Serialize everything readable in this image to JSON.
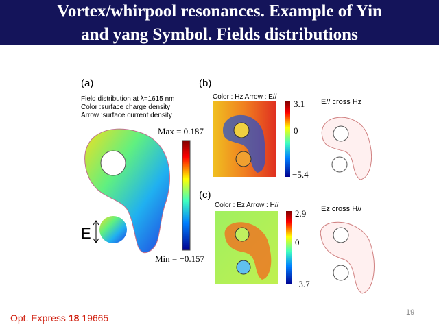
{
  "header": {
    "title_line1": "Vortex/whirpool resonances. Example of Yin",
    "title_line2": "and yang Symbol. Fields distributions"
  },
  "panel_a": {
    "label": "(a)",
    "caption_1": "Field distribution at λ=1615 nm",
    "caption_2": "Color :surface charge density",
    "caption_3": "Arrow :surface current density",
    "max_label": "Max = 0.187",
    "min_label": "Min = −0.157",
    "field_label": "E"
  },
  "panel_b": {
    "label": "(b)",
    "legend": "Color : Hz   Arrow : E//",
    "scale_top": "3.1",
    "scale_mid": "0",
    "scale_bottom": "−5.4",
    "right_title": "E// cross Hz"
  },
  "panel_c": {
    "label": "(c)",
    "legend": "Color : Ez   Arrow : H//",
    "scale_top": "2.9",
    "scale_mid": "0",
    "scale_bottom": "−3.7",
    "right_title": "Ez cross H//"
  },
  "citation": {
    "journal": "Opt. Express",
    "volume": "18",
    "page": "19665"
  },
  "page_number": "19"
}
